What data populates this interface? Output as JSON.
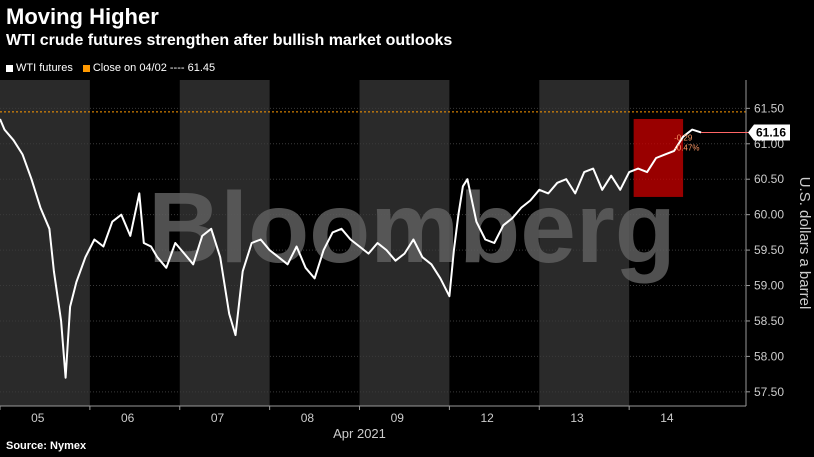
{
  "header": {
    "title": "Moving Higher",
    "subtitle": "WTI crude futures strengthen after bullish market outlooks"
  },
  "legend": {
    "wti_label": "WTI futures",
    "close_label": "Close on 04/02 ---- 61.45"
  },
  "colors": {
    "series": "#ffffff",
    "close_line": "#ff9900",
    "highlight": "#cc0000",
    "band": "#2a2a2a",
    "axis": "#999999"
  },
  "watermark": "Bloomberg",
  "source": "Source: Nymex",
  "callout": {
    "last_value": "61.16",
    "change": "-0.29",
    "change_pct": "-0.47%"
  },
  "chart_data": {
    "type": "line",
    "title": "Moving Higher",
    "subtitle": "WTI crude futures strengthen after bullish market outlooks",
    "xlabel": "Apr 2021",
    "ylabel": "U.S. dollars a barrel",
    "x_ticks": [
      "05",
      "06",
      "07",
      "08",
      "09",
      "12",
      "13",
      "14"
    ],
    "y_ticks": [
      "57.50",
      "58.00",
      "58.50",
      "59.00",
      "59.50",
      "60.00",
      "60.50",
      "61.00",
      "61.50"
    ],
    "ylim": [
      57.3,
      61.9
    ],
    "xlim": [
      0,
      8.3
    ],
    "reference_line": {
      "label": "Close on 04/02",
      "value": 61.45
    },
    "last_value": 61.16,
    "series": [
      {
        "name": "WTI futures",
        "x": [
          0,
          0.05,
          0.15,
          0.25,
          0.35,
          0.45,
          0.55,
          0.6,
          0.68,
          0.73,
          0.78,
          0.85,
          0.95,
          1.05,
          1.15,
          1.25,
          1.35,
          1.45,
          1.55,
          1.6,
          1.68,
          1.75,
          1.85,
          1.95,
          2.05,
          2.15,
          2.25,
          2.35,
          2.45,
          2.5,
          2.55,
          2.62,
          2.7,
          2.8,
          2.9,
          3.0,
          3.1,
          3.2,
          3.3,
          3.4,
          3.5,
          3.6,
          3.7,
          3.8,
          3.9,
          4.0,
          4.1,
          4.2,
          4.3,
          4.4,
          4.5,
          4.6,
          4.7,
          4.8,
          4.9,
          5.0,
          5.05,
          5.1,
          5.15,
          5.2,
          5.3,
          5.4,
          5.5,
          5.6,
          5.7,
          5.8,
          5.9,
          6.0,
          6.1,
          6.2,
          6.3,
          6.4,
          6.5,
          6.6,
          6.7,
          6.8,
          6.9,
          7.0,
          7.1,
          7.2,
          7.3,
          7.4,
          7.5,
          7.6,
          7.7,
          7.8
        ],
        "values": [
          61.35,
          61.2,
          61.05,
          60.85,
          60.5,
          60.1,
          59.8,
          59.2,
          58.5,
          57.7,
          58.7,
          59.05,
          59.4,
          59.65,
          59.55,
          59.9,
          60.0,
          59.7,
          60.3,
          59.6,
          59.55,
          59.4,
          59.25,
          59.6,
          59.45,
          59.3,
          59.7,
          59.8,
          59.4,
          59.0,
          58.6,
          58.3,
          59.2,
          59.6,
          59.65,
          59.5,
          59.4,
          59.3,
          59.55,
          59.25,
          59.1,
          59.5,
          59.75,
          59.8,
          59.65,
          59.55,
          59.45,
          59.6,
          59.5,
          59.35,
          59.45,
          59.65,
          59.4,
          59.3,
          59.1,
          58.85,
          59.5,
          60.0,
          60.4,
          60.5,
          59.9,
          59.65,
          59.6,
          59.85,
          59.95,
          60.1,
          60.2,
          60.35,
          60.3,
          60.45,
          60.5,
          60.3,
          60.6,
          60.65,
          60.35,
          60.55,
          60.35,
          60.6,
          60.65,
          60.6,
          60.8,
          60.85,
          60.9,
          61.1,
          61.2,
          61.16
        ]
      }
    ]
  }
}
